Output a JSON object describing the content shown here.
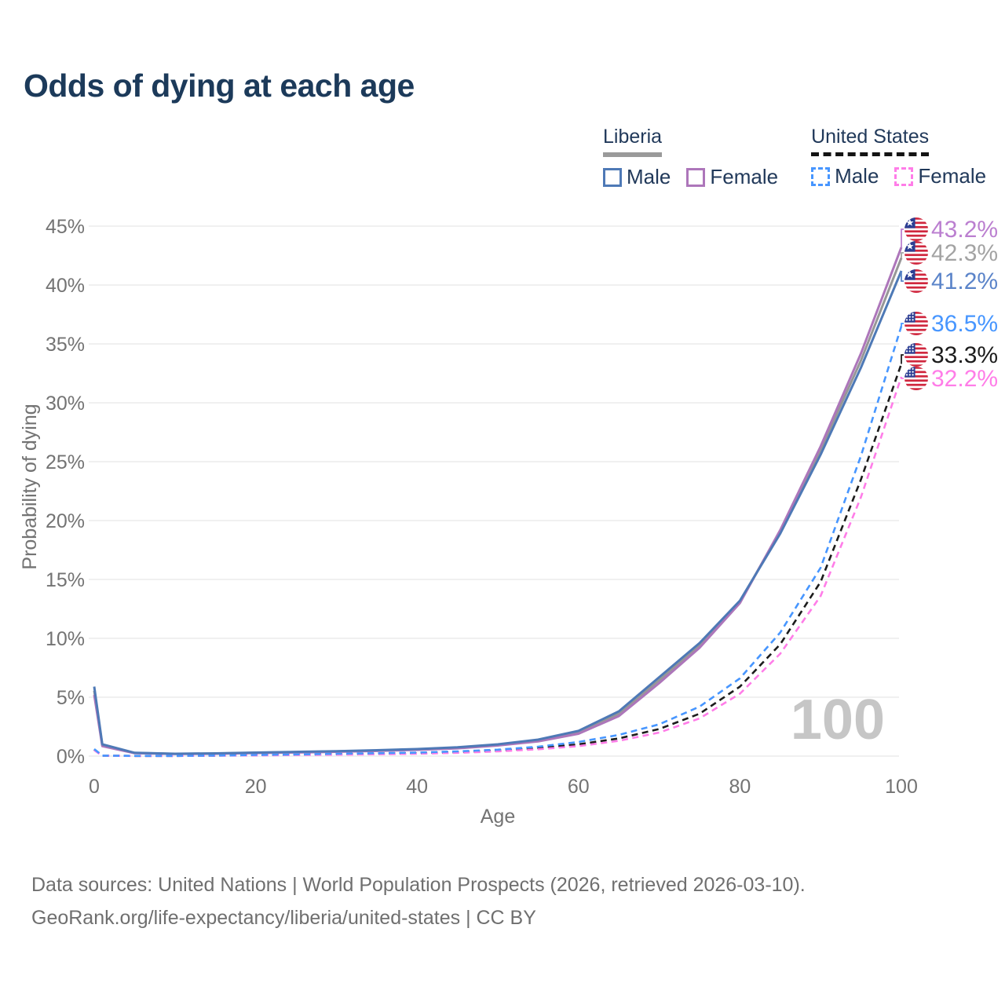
{
  "chart_data": {
    "type": "line",
    "title": "Odds of dying at each age",
    "xlabel": "Age",
    "ylabel": "Probability of dying",
    "xlim": [
      0,
      100
    ],
    "ylim": [
      0,
      45
    ],
    "x_ticks": [
      "0",
      "20",
      "40",
      "60",
      "80",
      "100"
    ],
    "y_ticks": [
      "0%",
      "5%",
      "10%",
      "15%",
      "20%",
      "25%",
      "30%",
      "35%",
      "40%",
      "45%"
    ],
    "grid": "horizontal",
    "legend_position": "top-right",
    "age_indicator": "100",
    "ages": [
      0,
      1,
      5,
      10,
      15,
      20,
      25,
      30,
      35,
      40,
      45,
      50,
      55,
      60,
      65,
      70,
      75,
      80,
      85,
      90,
      95,
      100
    ],
    "series": [
      {
        "name": "Liberia",
        "country": "Liberia",
        "sex": "both",
        "line_style": "solid",
        "color": "#979797",
        "values": [
          5.55,
          0.93,
          0.27,
          0.19,
          0.22,
          0.28,
          0.34,
          0.4,
          0.47,
          0.57,
          0.7,
          0.95,
          1.33,
          2.03,
          3.6,
          6.45,
          9.4,
          13.1,
          19.1,
          26.0,
          33.6,
          42.3
        ]
      },
      {
        "name": "Liberia Female",
        "country": "Liberia",
        "sex": "female",
        "line_style": "solid",
        "color": "#ad76ba",
        "values": [
          5.2,
          0.85,
          0.25,
          0.18,
          0.2,
          0.26,
          0.31,
          0.37,
          0.44,
          0.53,
          0.66,
          0.9,
          1.25,
          1.9,
          3.4,
          6.2,
          9.2,
          13.0,
          19.2,
          26.3,
          34.2,
          43.2
        ]
      },
      {
        "name": "Liberia Male",
        "country": "Liberia",
        "sex": "male",
        "line_style": "solid",
        "color": "#4e79b6",
        "values": [
          5.9,
          1.0,
          0.28,
          0.2,
          0.23,
          0.3,
          0.36,
          0.42,
          0.5,
          0.6,
          0.75,
          1.0,
          1.4,
          2.15,
          3.8,
          6.7,
          9.6,
          13.2,
          18.9,
          25.6,
          33.0,
          41.2
        ]
      },
      {
        "name": "United States",
        "country": "United States",
        "sex": "both",
        "line_style": "dashed",
        "color": "#1c1c1c",
        "values": [
          0.55,
          0.035,
          0.015,
          0.015,
          0.04,
          0.08,
          0.12,
          0.16,
          0.2,
          0.25,
          0.33,
          0.47,
          0.68,
          1.0,
          1.5,
          2.3,
          3.6,
          5.9,
          9.5,
          14.8,
          23.5,
          33.3
        ]
      },
      {
        "name": "United States Female",
        "country": "United States",
        "sex": "female",
        "line_style": "dashed",
        "color": "#ff7de8",
        "values": [
          0.5,
          0.03,
          0.012,
          0.012,
          0.03,
          0.06,
          0.09,
          0.12,
          0.16,
          0.2,
          0.28,
          0.4,
          0.58,
          0.85,
          1.3,
          2.0,
          3.2,
          5.3,
          8.7,
          13.6,
          22.0,
          32.2
        ]
      },
      {
        "name": "United States Male",
        "country": "United States",
        "sex": "male",
        "line_style": "dashed",
        "color": "#4796ff",
        "values": [
          0.6,
          0.04,
          0.02,
          0.02,
          0.05,
          0.1,
          0.15,
          0.2,
          0.25,
          0.3,
          0.4,
          0.55,
          0.8,
          1.2,
          1.8,
          2.7,
          4.2,
          6.6,
          10.5,
          16.0,
          25.5,
          36.5
        ]
      }
    ],
    "end_labels": [
      {
        "series": "Liberia Female",
        "value": "43.2%",
        "color": "#bb7fd0",
        "flag": "liberia"
      },
      {
        "series": "Liberia",
        "value": "42.3%",
        "color": "#a3a3a3",
        "flag": "liberia"
      },
      {
        "series": "Liberia Male",
        "value": "41.2%",
        "color": "#5b84c9",
        "flag": "liberia"
      },
      {
        "series": "United States Male",
        "value": "36.5%",
        "color": "#4796ff",
        "flag": "united-states"
      },
      {
        "series": "United States",
        "value": "33.3%",
        "color": "#1c1c1c",
        "flag": "united-states"
      },
      {
        "series": "United States Female",
        "value": "32.2%",
        "color": "#ff7de8",
        "flag": "united-states"
      }
    ]
  },
  "legend": {
    "groups": [
      {
        "label": "Liberia",
        "line_style": "solid",
        "underline_color": "#9a9a9a",
        "items": [
          {
            "label": "Male",
            "color": "#4e79b6"
          },
          {
            "label": "Female",
            "color": "#ad76ba"
          }
        ]
      },
      {
        "label": "United States",
        "line_style": "dashed",
        "underline_color": "#141414",
        "items": [
          {
            "label": "Male",
            "color": "#4796ff"
          },
          {
            "label": "Female",
            "color": "#ff7de8"
          }
        ]
      }
    ]
  },
  "footer": {
    "line1": "Data sources: United Nations | World Population Prospects (2026, retrieved 2026-03-10).",
    "line2": "GeoRank.org/life-expectancy/liberia/united-states | CC BY"
  }
}
